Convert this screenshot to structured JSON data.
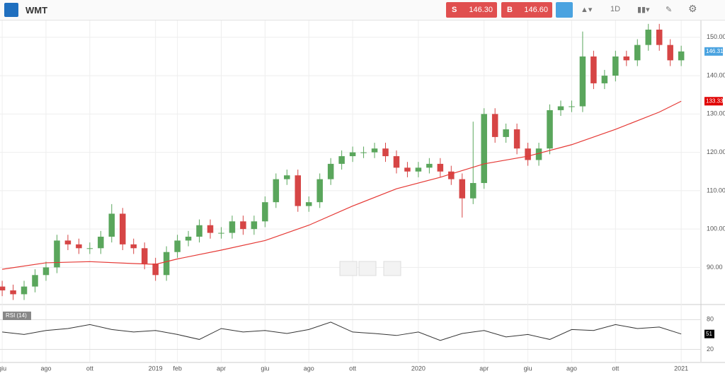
{
  "toolbar": {
    "symbol": "WMT",
    "sell": {
      "label": "S",
      "price": "146.30"
    },
    "buy": {
      "label": "B",
      "price": "146.60"
    },
    "timeframe": "1D"
  },
  "chart_data": [
    {
      "type": "candlestick",
      "up_color": "#5aa65c",
      "down_color": "#d64545",
      "x": [
        0,
        0.5,
        1,
        1.5,
        2,
        2.5,
        3,
        3.5,
        4,
        4.5,
        5,
        5.5,
        6,
        6.5,
        7,
        7.5,
        8,
        8.5,
        9,
        9.5,
        10,
        10.5,
        11,
        11.5,
        12,
        12.5,
        13,
        13.5,
        14,
        14.5,
        15,
        15.5,
        16,
        16.5,
        17,
        17.5,
        18,
        18.5,
        19,
        19.5,
        20,
        20.5,
        21,
        21.5,
        22,
        22.5,
        23,
        23.5,
        24,
        24.5,
        25,
        25.5,
        26,
        26.5,
        27,
        27.5,
        28,
        28.5,
        29,
        29.5,
        30,
        30.5,
        31
      ],
      "open": [
        85,
        84,
        83,
        85,
        88,
        90,
        97,
        96,
        95,
        95,
        98,
        104,
        96,
        95,
        91,
        88,
        94,
        97,
        98,
        101,
        99,
        99,
        102,
        100,
        102,
        107,
        113,
        114,
        106,
        107,
        113,
        117,
        119,
        120,
        120,
        121,
        119,
        116,
        115,
        116,
        117,
        115,
        113,
        108,
        112,
        130,
        124,
        126,
        121,
        118,
        121,
        131,
        132,
        132,
        145,
        138,
        140,
        145,
        144,
        148,
        152,
        148,
        144
      ],
      "high": [
        86.5,
        85.5,
        86.5,
        89.5,
        91.5,
        98.5,
        98.5,
        97.5,
        96.5,
        99.5,
        106.5,
        105.5,
        97.5,
        96.5,
        92.5,
        95.5,
        98.5,
        99.5,
        102.5,
        102.5,
        100.5,
        103.5,
        103.5,
        103.5,
        108.5,
        114.5,
        115.5,
        115.5,
        108.5,
        114.5,
        118.5,
        120.5,
        121.5,
        121.5,
        122.5,
        122.5,
        120.5,
        117.5,
        117.5,
        118.5,
        118.5,
        116.5,
        114.5,
        128,
        131.5,
        131.5,
        127.5,
        127.5,
        122.5,
        122.5,
        132.5,
        133.5,
        133.5,
        151.5,
        146.5,
        141.5,
        146.5,
        146.5,
        149.5,
        153.5,
        153.5,
        149.5,
        147.8
      ],
      "low": [
        82.5,
        81.5,
        81.5,
        83.5,
        86.5,
        88.5,
        94.5,
        93.5,
        93.5,
        93.5,
        96.5,
        94.5,
        93.5,
        89.5,
        86.5,
        86.5,
        92.5,
        95.5,
        96.5,
        97.5,
        97.5,
        97.5,
        98.5,
        98.5,
        100.5,
        105.5,
        111.5,
        104.5,
        104.5,
        105.5,
        111.5,
        115.5,
        117.5,
        118.5,
        118.5,
        117.5,
        114.5,
        113.5,
        113.5,
        114.5,
        113.5,
        111.5,
        103,
        106.5,
        110.5,
        122.5,
        122.5,
        119.5,
        116.5,
        116.5,
        119.5,
        129.5,
        130.5,
        130.5,
        136.5,
        136.5,
        138.5,
        142.5,
        142.5,
        146.5,
        146.5,
        142.5,
        142.5
      ],
      "close": [
        84,
        83,
        85,
        88,
        90,
        97,
        96,
        95,
        95,
        98,
        104,
        96,
        95,
        91,
        88,
        94,
        97,
        98,
        101,
        99,
        99,
        102,
        100,
        102,
        107,
        113,
        114,
        106,
        107,
        113,
        117,
        119,
        120,
        120,
        121,
        119,
        116,
        115,
        116,
        117,
        115,
        113,
        108,
        112,
        130,
        124,
        126,
        121,
        118,
        121,
        131,
        132,
        132,
        145,
        138,
        140,
        145,
        144,
        148,
        152,
        148,
        144,
        146.31
      ],
      "moving_average": {
        "color": "#e53935",
        "x": [
          0,
          2,
          4,
          6,
          7,
          8,
          10,
          12,
          14,
          16,
          18,
          20,
          22,
          24,
          26,
          28,
          30,
          31
        ],
        "values": [
          89.5,
          91.2,
          91.5,
          91,
          90.8,
          92.2,
          94.5,
          97,
          101,
          106,
          110.5,
          113.5,
          117,
          119,
          122,
          126,
          130.5,
          133.33
        ]
      },
      "ylim": [
        80.5,
        154.2
      ],
      "yticks": [
        {
          "value": 90,
          "label": "90.00"
        },
        {
          "value": 100,
          "label": "100.00"
        },
        {
          "value": 110,
          "label": "110.00"
        },
        {
          "value": 120,
          "label": "120.00"
        },
        {
          "value": 130,
          "label": "130.00"
        },
        {
          "value": 140,
          "label": "140.00"
        },
        {
          "value": 150,
          "label": "150.00"
        }
      ],
      "xlim": [
        -0.1,
        31.9
      ],
      "xticks": [
        {
          "value": 0,
          "label": "giu"
        },
        {
          "value": 2,
          "label": "ago"
        },
        {
          "value": 4,
          "label": "ott"
        },
        {
          "value": 7,
          "label": "2019"
        },
        {
          "value": 8,
          "label": "feb"
        },
        {
          "value": 10,
          "label": "apr"
        },
        {
          "value": 12,
          "label": "giu"
        },
        {
          "value": 14,
          "label": "ago"
        },
        {
          "value": 16,
          "label": "ott"
        },
        {
          "value": 19,
          "label": "2020"
        },
        {
          "value": 22,
          "label": "apr"
        },
        {
          "value": 24,
          "label": "giu"
        },
        {
          "value": 26,
          "label": "ago"
        },
        {
          "value": 28,
          "label": "ott"
        },
        {
          "value": 31,
          "label": "2021"
        }
      ]
    },
    {
      "type": "line",
      "title": "RSI (14)",
      "color": "#333333",
      "x": [
        0,
        1,
        2,
        3,
        4,
        5,
        6,
        7,
        8,
        9,
        10,
        11,
        12,
        13,
        14,
        15,
        16,
        17,
        18,
        19,
        20,
        21,
        22,
        23,
        24,
        25,
        26,
        27,
        28,
        29,
        30,
        31
      ],
      "values": [
        55,
        50,
        58,
        62,
        70,
        60,
        55,
        58,
        50,
        40,
        62,
        55,
        58,
        52,
        60,
        75,
        55,
        52,
        48,
        55,
        38,
        52,
        58,
        45,
        50,
        40,
        60,
        58,
        70,
        62,
        65,
        51
      ],
      "ylim": [
        -5,
        97.6
      ],
      "yticks": [
        20,
        80
      ],
      "xlim": [
        -0.1,
        31.9
      ]
    }
  ]
}
